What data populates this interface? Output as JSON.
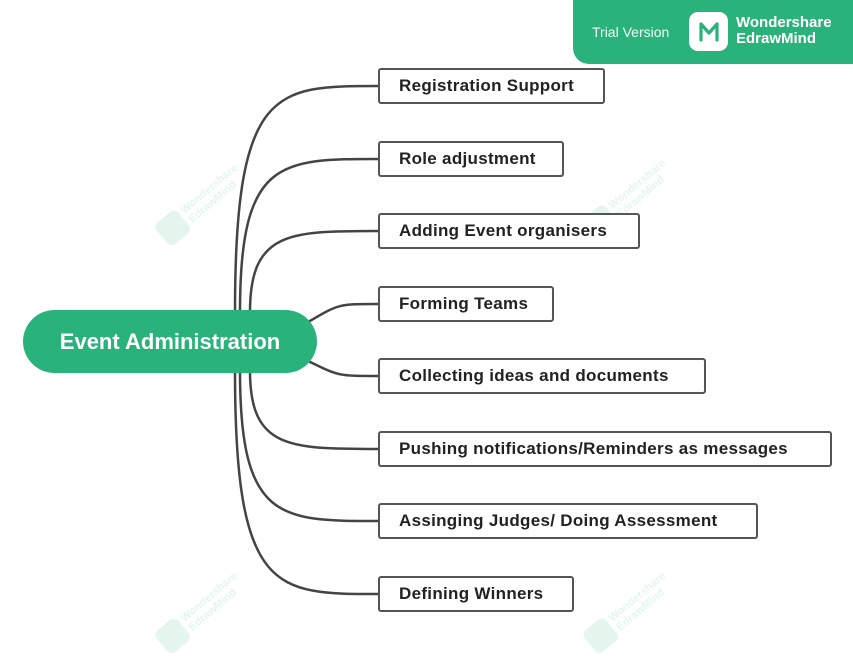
{
  "banner": {
    "trial_label": "Trial Version",
    "brand_line1": "Wondershare",
    "brand_line2": "EdrawMind",
    "color": "#2ab27b"
  },
  "watermark": {
    "line1": "Wondershare",
    "line2": "EdrawMind"
  },
  "mindmap": {
    "root": "Event Administration",
    "topics": [
      "Registration Support",
      "Role adjustment",
      "Adding Event organisers",
      "Forming Teams",
      "Collecting ideas and documents",
      "Pushing notifications/Reminders as messages",
      "Assinging Judges/ Doing Assessment",
      "Defining Winners"
    ]
  }
}
